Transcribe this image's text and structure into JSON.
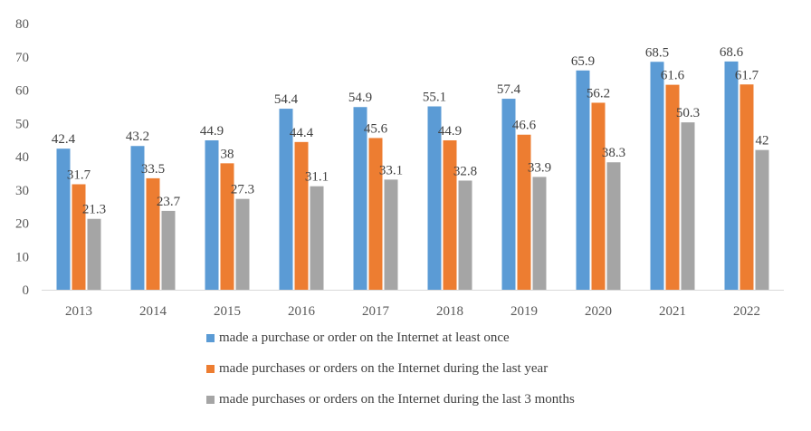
{
  "chart_data": {
    "type": "bar",
    "categories": [
      "2013",
      "2014",
      "2015",
      "2016",
      "2017",
      "2018",
      "2019",
      "2020",
      "2021",
      "2022"
    ],
    "series": [
      {
        "name": "made a purchase or order on the Internet at least once",
        "color": "#5B9BD5",
        "values": [
          42.4,
          43.2,
          44.9,
          54.4,
          54.9,
          55.1,
          57.4,
          65.9,
          68.5,
          68.6
        ]
      },
      {
        "name": "made purchases or orders on the Internet during the last year",
        "color": "#ED7D31",
        "values": [
          31.7,
          33.5,
          38,
          44.4,
          45.6,
          44.9,
          46.6,
          56.2,
          61.6,
          61.7
        ]
      },
      {
        "name": "made purchases or orders on the Internet during the last 3 months",
        "color": "#A5A5A5",
        "values": [
          21.3,
          23.7,
          27.3,
          31.1,
          33.1,
          32.8,
          33.9,
          38.3,
          50.3,
          42
        ]
      }
    ],
    "yticks": [
      "0",
      "10",
      "20",
      "30",
      "40",
      "50",
      "60",
      "70",
      "80"
    ],
    "ylim": [
      0,
      80
    ],
    "grid": false,
    "legend": "bottom",
    "title": "",
    "xlabel": "",
    "ylabel": ""
  }
}
